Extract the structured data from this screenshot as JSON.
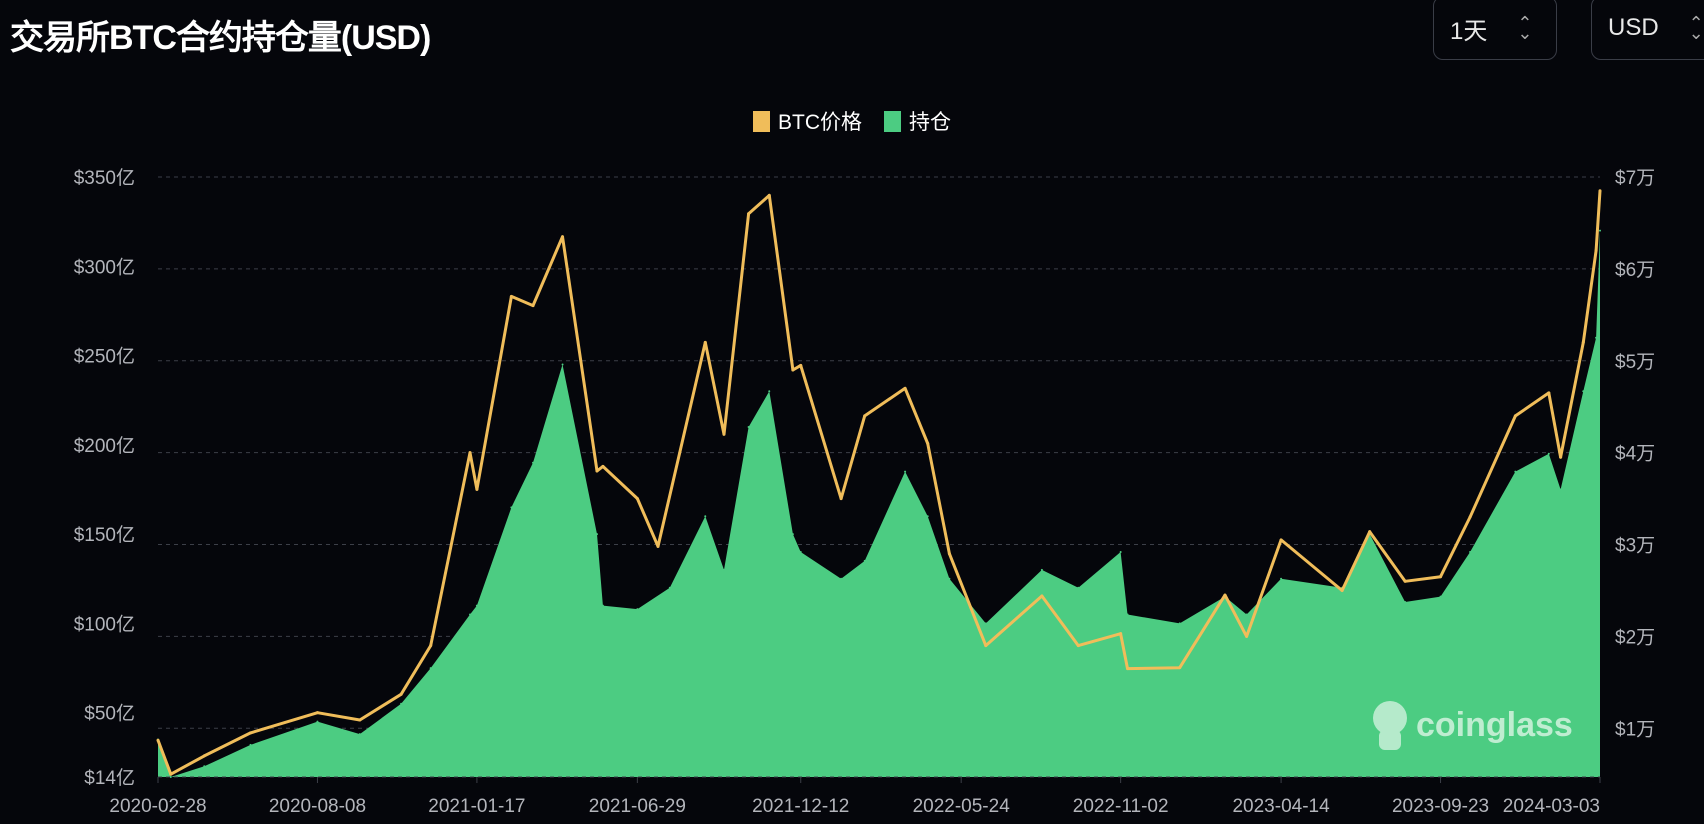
{
  "title": "交易所BTC合约持仓量(USD)",
  "controls": {
    "interval": "1天",
    "currency": "USD"
  },
  "watermark": "coinglass",
  "colors": {
    "price": "#f0bd5a",
    "oi": "#4ccc82",
    "background": "#05060b"
  },
  "chart_data": {
    "type": "line+area",
    "legend": {
      "position": "top-center",
      "entries": [
        "BTC价格",
        "持仓"
      ]
    },
    "grid": "horizontal dashed",
    "left_axis": {
      "range": [
        14,
        350
      ],
      "unit": "亿 USD",
      "ticks": [
        "$14亿",
        "$50亿",
        "$100亿",
        "$150亿",
        "$200亿",
        "$250亿",
        "$300亿",
        "$350亿"
      ],
      "tick_values": [
        14,
        50,
        100,
        150,
        200,
        250,
        300,
        350
      ]
    },
    "right_axis": {
      "range": [
        4700,
        70000
      ],
      "unit": "USD",
      "ticks": [
        "$1万",
        "$2万",
        "$3万",
        "$4万",
        "$5万",
        "$6万",
        "$7万"
      ],
      "tick_values": [
        10000,
        20000,
        30000,
        40000,
        50000,
        60000,
        70000
      ]
    },
    "x_ticks": [
      "2020-02-28",
      "2020-08-08",
      "2021-01-17",
      "2021-06-29",
      "2021-12-12",
      "2022-05-24",
      "2022-11-02",
      "2023-04-14",
      "2023-09-23",
      "2024-03-03"
    ],
    "x_range": [
      "2020-02-28",
      "2024-03-03"
    ],
    "series": [
      {
        "name": "持仓",
        "axis": "left",
        "type": "area",
        "points": [
          [
            "2020-02-28",
            35
          ],
          [
            "2020-03-12",
            14
          ],
          [
            "2020-04-15",
            20
          ],
          [
            "2020-06-01",
            32
          ],
          [
            "2020-08-08",
            45
          ],
          [
            "2020-09-20",
            38
          ],
          [
            "2020-11-01",
            55
          ],
          [
            "2020-12-01",
            75
          ],
          [
            "2021-01-10",
            105
          ],
          [
            "2021-01-17",
            110
          ],
          [
            "2021-02-21",
            165
          ],
          [
            "2021-03-15",
            190
          ],
          [
            "2021-04-14",
            245
          ],
          [
            "2021-05-19",
            150
          ],
          [
            "2021-05-25",
            110
          ],
          [
            "2021-06-29",
            108
          ],
          [
            "2021-08-01",
            120
          ],
          [
            "2021-09-06",
            160
          ],
          [
            "2021-09-25",
            130
          ],
          [
            "2021-10-20",
            210
          ],
          [
            "2021-11-10",
            230
          ],
          [
            "2021-12-04",
            150
          ],
          [
            "2021-12-12",
            140
          ],
          [
            "2022-01-22",
            125
          ],
          [
            "2022-02-15",
            135
          ],
          [
            "2022-03-28",
            185
          ],
          [
            "2022-04-20",
            160
          ],
          [
            "2022-05-12",
            125
          ],
          [
            "2022-06-18",
            100
          ],
          [
            "2022-08-14",
            130
          ],
          [
            "2022-09-20",
            120
          ],
          [
            "2022-11-02",
            140
          ],
          [
            "2022-11-09",
            105
          ],
          [
            "2023-01-01",
            100
          ],
          [
            "2023-02-16",
            115
          ],
          [
            "2023-03-10",
            105
          ],
          [
            "2023-04-14",
            125
          ],
          [
            "2023-06-15",
            120
          ],
          [
            "2023-07-13",
            150
          ],
          [
            "2023-08-18",
            112
          ],
          [
            "2023-09-23",
            115
          ],
          [
            "2023-10-23",
            140
          ],
          [
            "2023-12-08",
            185
          ],
          [
            "2024-01-11",
            195
          ],
          [
            "2024-01-23",
            175
          ],
          [
            "2024-02-15",
            230
          ],
          [
            "2024-02-28",
            260
          ],
          [
            "2024-03-03",
            320
          ]
        ]
      },
      {
        "name": "BTC价格",
        "axis": "right",
        "type": "line",
        "points": [
          [
            "2020-02-28",
            8700
          ],
          [
            "2020-03-12",
            5000
          ],
          [
            "2020-04-15",
            7000
          ],
          [
            "2020-06-01",
            9500
          ],
          [
            "2020-08-08",
            11700
          ],
          [
            "2020-09-20",
            10900
          ],
          [
            "2020-11-01",
            13700
          ],
          [
            "2020-12-01",
            19000
          ],
          [
            "2021-01-10",
            40000
          ],
          [
            "2021-01-17",
            36000
          ],
          [
            "2021-02-21",
            57000
          ],
          [
            "2021-03-15",
            56000
          ],
          [
            "2021-04-14",
            63500
          ],
          [
            "2021-05-19",
            38000
          ],
          [
            "2021-05-25",
            38500
          ],
          [
            "2021-06-29",
            35000
          ],
          [
            "2021-07-20",
            29800
          ],
          [
            "2021-09-06",
            52000
          ],
          [
            "2021-09-25",
            42000
          ],
          [
            "2021-10-20",
            66000
          ],
          [
            "2021-11-10",
            68000
          ],
          [
            "2021-12-04",
            49000
          ],
          [
            "2021-12-12",
            49500
          ],
          [
            "2022-01-22",
            35000
          ],
          [
            "2022-02-15",
            44000
          ],
          [
            "2022-03-28",
            47000
          ],
          [
            "2022-04-20",
            41000
          ],
          [
            "2022-05-12",
            29000
          ],
          [
            "2022-06-18",
            19000
          ],
          [
            "2022-08-14",
            24400
          ],
          [
            "2022-09-20",
            19000
          ],
          [
            "2022-11-02",
            20300
          ],
          [
            "2022-11-09",
            16500
          ],
          [
            "2023-01-01",
            16600
          ],
          [
            "2023-02-16",
            24500
          ],
          [
            "2023-03-10",
            20000
          ],
          [
            "2023-04-14",
            30500
          ],
          [
            "2023-06-15",
            25000
          ],
          [
            "2023-07-13",
            31400
          ],
          [
            "2023-08-18",
            26000
          ],
          [
            "2023-09-23",
            26500
          ],
          [
            "2023-10-23",
            33000
          ],
          [
            "2023-12-08",
            44000
          ],
          [
            "2024-01-11",
            46500
          ],
          [
            "2024-01-23",
            39500
          ],
          [
            "2024-02-15",
            52000
          ],
          [
            "2024-02-28",
            62000
          ],
          [
            "2024-03-03",
            68500
          ]
        ]
      }
    ]
  }
}
